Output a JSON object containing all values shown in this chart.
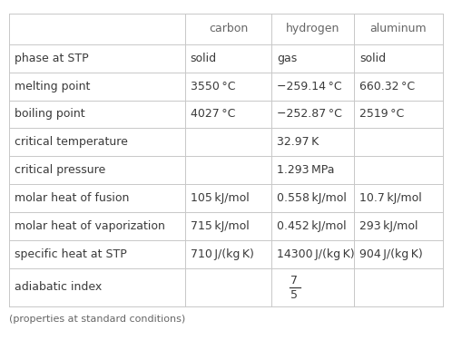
{
  "headers": [
    "",
    "carbon",
    "hydrogen",
    "aluminum"
  ],
  "rows": [
    [
      "phase at STP",
      "solid",
      "gas",
      "solid"
    ],
    [
      "melting point",
      "3550 °C",
      "−259.14 °C",
      "660.32 °C"
    ],
    [
      "boiling point",
      "4027 °C",
      "−252.87 °C",
      "2519 °C"
    ],
    [
      "critical temperature",
      "",
      "32.97 K",
      ""
    ],
    [
      "critical pressure",
      "",
      "1.293 MPa",
      ""
    ],
    [
      "molar heat of fusion",
      "105 kJ/mol",
      "0.558 kJ/mol",
      "10.7 kJ/mol"
    ],
    [
      "molar heat of vaporization",
      "715 kJ/mol",
      "0.452 kJ/mol",
      "293 kJ/mol"
    ],
    [
      "specific heat at STP",
      "710 J/(kg K)",
      "14300 J/(kg K)",
      "904 J/(kg K)"
    ],
    [
      "adiabatic index",
      "",
      "FRAC_7_5",
      ""
    ]
  ],
  "footer": "(properties at standard conditions)",
  "bg_color": "#ffffff",
  "text_color": "#3a3a3a",
  "header_text_color": "#666666",
  "line_color": "#c8c8c8",
  "font_size": 9.0,
  "header_font_size": 9.0,
  "footer_font_size": 8.0,
  "col_splits": [
    0.405,
    0.605,
    0.795
  ],
  "fig_width": 4.98,
  "fig_height": 3.75,
  "dpi": 100
}
